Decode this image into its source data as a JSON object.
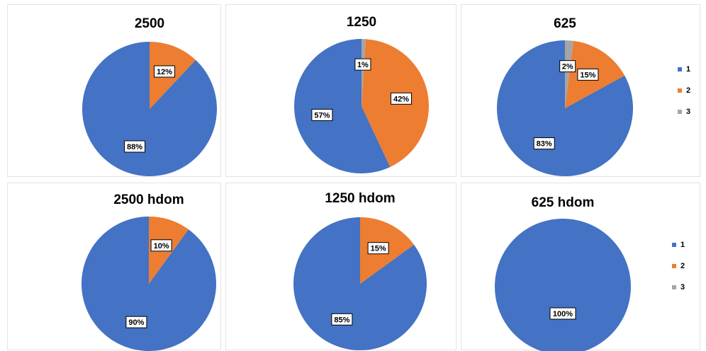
{
  "chart_data": [
    {
      "type": "pie",
      "title": "2500",
      "categories": [
        "1",
        "2",
        "3"
      ],
      "values": [
        88,
        12,
        0
      ],
      "data_labels": [
        "88%",
        "12%",
        ""
      ]
    },
    {
      "type": "pie",
      "title": "1250",
      "categories": [
        "1",
        "2",
        "3"
      ],
      "values": [
        57,
        42,
        1
      ],
      "data_labels": [
        "57%",
        "42%",
        "1%"
      ]
    },
    {
      "type": "pie",
      "title": "625",
      "categories": [
        "1",
        "2",
        "3"
      ],
      "values": [
        83,
        15,
        2
      ],
      "data_labels": [
        "83%",
        "15%",
        "2%"
      ]
    },
    {
      "type": "pie",
      "title": "2500 hdom",
      "categories": [
        "1",
        "2",
        "3"
      ],
      "values": [
        90,
        10,
        0
      ],
      "data_labels": [
        "90%",
        "10%",
        ""
      ]
    },
    {
      "type": "pie",
      "title": "1250 hdom",
      "categories": [
        "1",
        "2",
        "3"
      ],
      "values": [
        85,
        15,
        0
      ],
      "data_labels": [
        "85%",
        "15%",
        ""
      ]
    },
    {
      "type": "pie",
      "title": "625 hdom",
      "categories": [
        "1",
        "2",
        "3"
      ],
      "values": [
        100,
        0,
        0
      ],
      "data_labels": [
        "100%",
        "",
        ""
      ]
    }
  ],
  "legends": [
    {
      "placement": "right",
      "entries": [
        "1",
        "2",
        "3"
      ]
    },
    {
      "placement": "right",
      "entries": [
        "1",
        "2",
        "3"
      ]
    }
  ],
  "colors": {
    "1": "#4472C4",
    "2": "#ED7D31",
    "3": "#A5A5A5"
  }
}
